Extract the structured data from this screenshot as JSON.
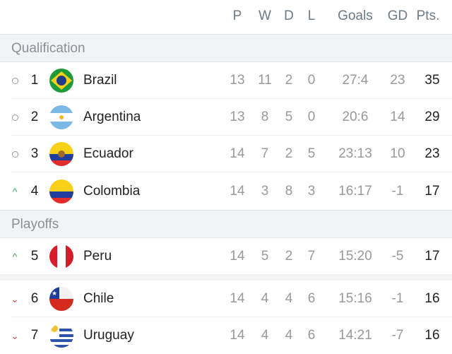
{
  "columns": {
    "p": "P",
    "w": "W",
    "d": "D",
    "l": "L",
    "goals": "Goals",
    "gd": "GD",
    "pts": "Pts."
  },
  "groups": [
    {
      "label": "Qualification",
      "rows": [
        {
          "indicator": "circle",
          "rank": "1",
          "team": "Brazil",
          "p": "13",
          "w": "11",
          "d": "2",
          "l": "0",
          "goals": "27:4",
          "gd": "23",
          "pts": "35"
        },
        {
          "indicator": "circle",
          "rank": "2",
          "team": "Argentina",
          "p": "13",
          "w": "8",
          "d": "5",
          "l": "0",
          "goals": "20:6",
          "gd": "14",
          "pts": "29"
        },
        {
          "indicator": "circle",
          "rank": "3",
          "team": "Ecuador",
          "p": "14",
          "w": "7",
          "d": "2",
          "l": "5",
          "goals": "23:13",
          "gd": "10",
          "pts": "23"
        },
        {
          "indicator": "up",
          "rank": "4",
          "team": "Colombia",
          "p": "14",
          "w": "3",
          "d": "8",
          "l": "3",
          "goals": "16:17",
          "gd": "-1",
          "pts": "17"
        }
      ]
    },
    {
      "label": "Playoffs",
      "rows": [
        {
          "indicator": "up",
          "rank": "5",
          "team": "Peru",
          "p": "14",
          "w": "5",
          "d": "2",
          "l": "7",
          "goals": "15:20",
          "gd": "-5",
          "pts": "17"
        }
      ]
    },
    {
      "label": "",
      "rows": [
        {
          "indicator": "down",
          "rank": "6",
          "team": "Chile",
          "p": "14",
          "w": "4",
          "d": "4",
          "l": "6",
          "goals": "15:16",
          "gd": "-1",
          "pts": "16"
        },
        {
          "indicator": "down",
          "rank": "7",
          "team": "Uruguay",
          "p": "14",
          "w": "4",
          "d": "4",
          "l": "6",
          "goals": "14:21",
          "gd": "-7",
          "pts": "16"
        }
      ]
    }
  ],
  "colors": {
    "up": "#3aa757",
    "down": "#e05252",
    "circle": "#999999"
  }
}
